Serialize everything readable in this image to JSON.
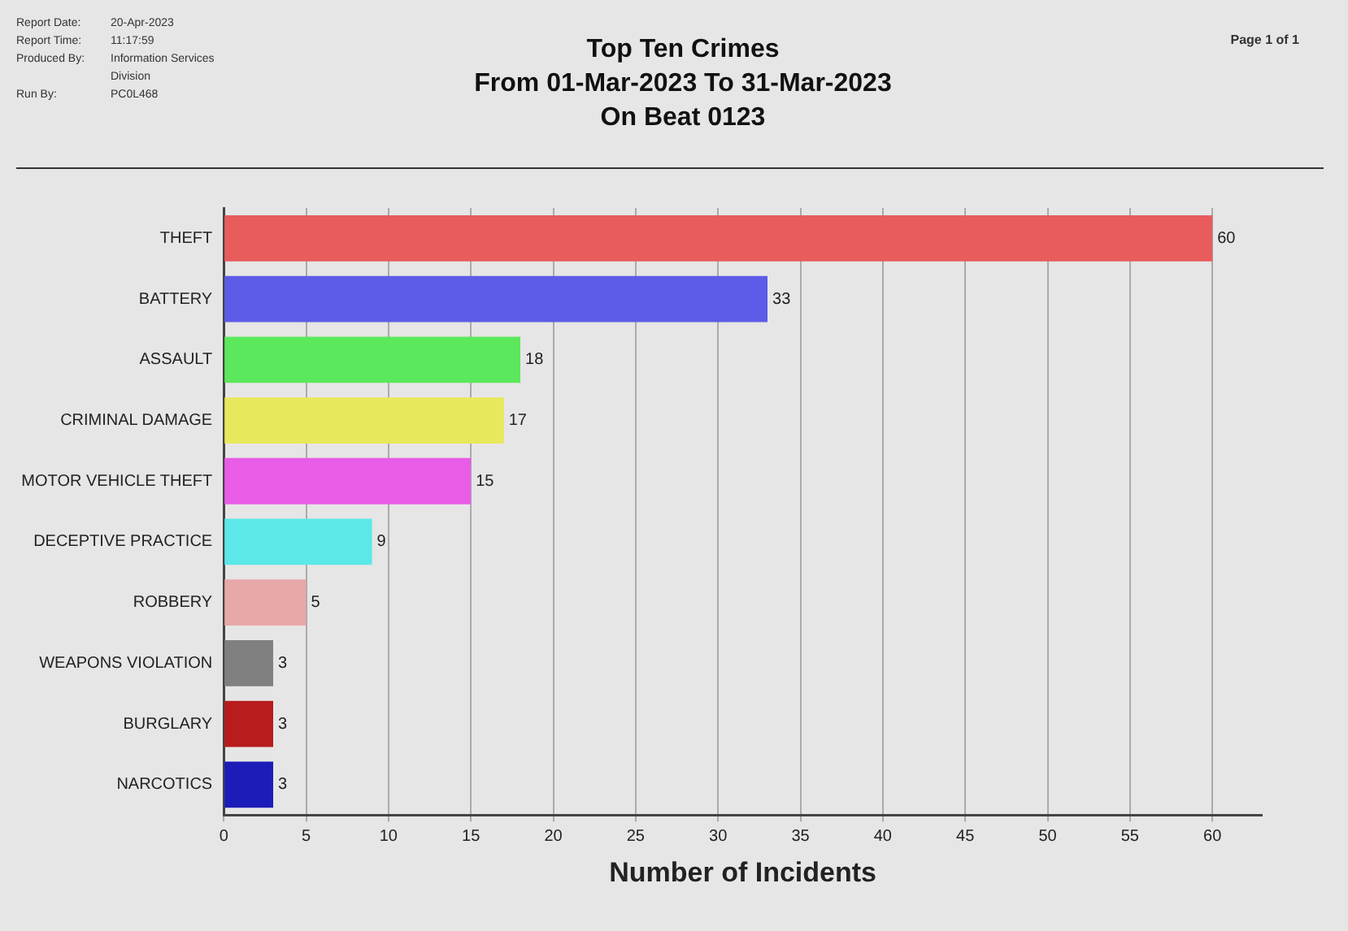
{
  "chart_data": {
    "type": "bar",
    "orientation": "horizontal",
    "title": "Top Ten Crimes",
    "subtitle": "From 01-Mar-2023 To 31-Mar-2023\nOn Beat 0123",
    "xlabel": "Number of Incidents",
    "categories": [
      "THEFT",
      "BATTERY",
      "ASSAULT",
      "CRIMINAL DAMAGE",
      "MOTOR VEHICLE THEFT",
      "DECEPTIVE PRACTICE",
      "ROBBERY",
      "WEAPONS VIOLATION",
      "BURGLARY",
      "NARCOTICS"
    ],
    "values": [
      60,
      33,
      18,
      17,
      15,
      9,
      5,
      3,
      3,
      3
    ],
    "colors": [
      "#e85c5c",
      "#5c5ce8",
      "#5ce85c",
      "#e8e85c",
      "#e85ce8",
      "#5ce8e8",
      "#e8a8a8",
      "#808080",
      "#b81c1c",
      "#1c1cb8"
    ],
    "xlim": [
      0,
      63
    ],
    "xticks": [
      0,
      5,
      10,
      15,
      20,
      25,
      30,
      35,
      40,
      45,
      50,
      55,
      60
    ],
    "grid": "x",
    "data_labels": true,
    "legend": false,
    "annotations": [
      "Report Date:\t20-Apr-2023",
      "Report Time:\t11:17:59",
      "Produced By:\tInformation Services\nDivision",
      "Run By:\tPC0L468",
      "Page 1 of 1"
    ]
  }
}
